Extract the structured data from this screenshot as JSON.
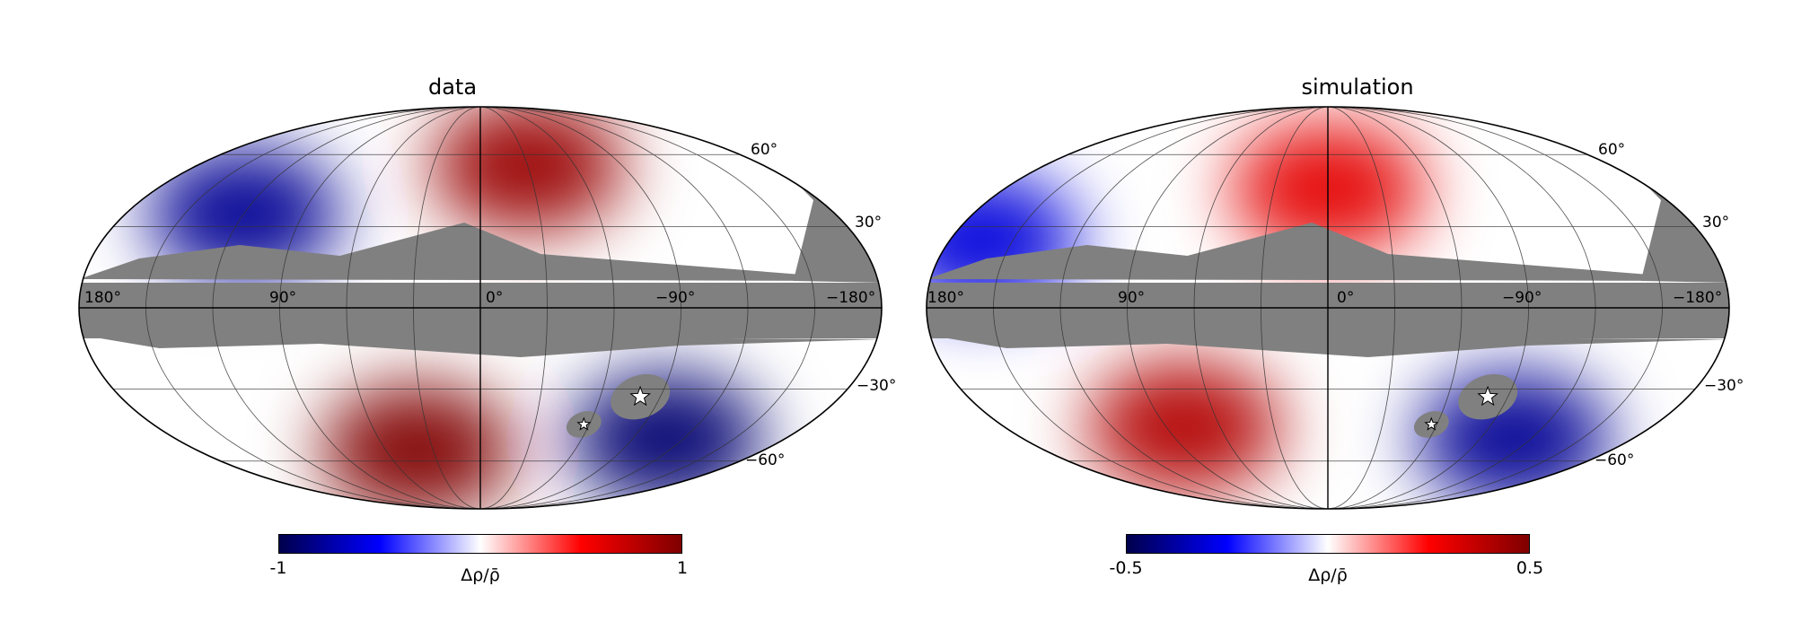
{
  "chart_data": [
    {
      "type": "heatmap",
      "projection": "mollweide",
      "title": "data",
      "colormap": "seismic",
      "masked_color": "#808080",
      "lon_ticks": [
        "180°",
        "90°",
        "0°",
        "−90°",
        "−180°"
      ],
      "lat_ticks": [
        "60°",
        "30°",
        "−30°",
        "−60°"
      ],
      "colorbar": {
        "min_label": "-1",
        "max_label": "1",
        "label": "Δρ/ρ̄",
        "range": [
          -1,
          1
        ]
      },
      "features": [
        {
          "name": "positive-north",
          "lon": -30,
          "lat": 55,
          "value": 0.9
        },
        {
          "name": "positive-south",
          "lon": 40,
          "lat": -55,
          "value": 1.0
        },
        {
          "name": "negative-north",
          "lon": 120,
          "lat": 35,
          "value": -0.8
        },
        {
          "name": "negative-south",
          "lon": -110,
          "lat": -50,
          "value": -0.9
        }
      ],
      "markers": [
        {
          "name": "LMC",
          "lon": -80,
          "lat": -33
        },
        {
          "name": "SMC",
          "lon": -57,
          "lat": -44
        }
      ]
    },
    {
      "type": "heatmap",
      "projection": "mollweide",
      "title": "simulation",
      "colormap": "seismic",
      "masked_color": "#808080",
      "lon_ticks": [
        "180°",
        "90°",
        "0°",
        "−90°",
        "−180°"
      ],
      "lat_ticks": [
        "60°",
        "30°",
        "−30°",
        "−60°"
      ],
      "colorbar": {
        "min_label": "-0.5",
        "max_label": "0.5",
        "label": "Δρ/ρ̄",
        "range": [
          -0.5,
          0.5
        ]
      },
      "features": [
        {
          "name": "positive-north",
          "lon": 0,
          "lat": 45,
          "value": 0.3
        },
        {
          "name": "positive-south",
          "lon": 80,
          "lat": -45,
          "value": 0.4
        },
        {
          "name": "negative-north",
          "lon": 165,
          "lat": 25,
          "value": -0.3
        },
        {
          "name": "negative-south",
          "lon": -110,
          "lat": -50,
          "value": -0.4
        }
      ],
      "markers": [
        {
          "name": "LMC",
          "lon": -80,
          "lat": -33
        },
        {
          "name": "SMC",
          "lon": -57,
          "lat": -44
        }
      ]
    }
  ]
}
